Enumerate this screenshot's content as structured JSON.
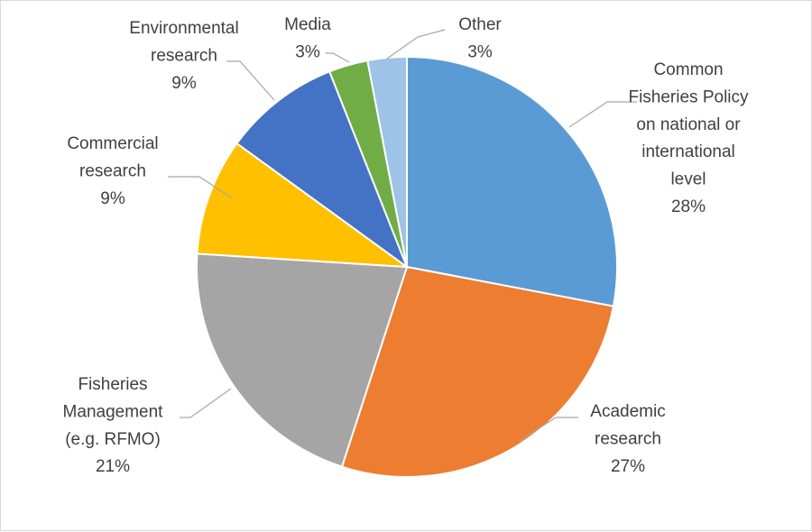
{
  "chart_data": {
    "type": "pie",
    "title": "",
    "start_angle_deg": 0,
    "direction": "clockwise",
    "slices": [
      {
        "label_lines": [
          "Common",
          "Fisheries Policy",
          "on national or",
          "international",
          "level"
        ],
        "pct_label": "28%",
        "value": 28,
        "color": "#5b9bd5"
      },
      {
        "label_lines": [
          "Academic",
          "research"
        ],
        "pct_label": "27%",
        "value": 27,
        "color": "#ed7d31"
      },
      {
        "label_lines": [
          "Fisheries",
          "Management",
          "(e.g. RFMO)"
        ],
        "pct_label": "21%",
        "value": 21,
        "color": "#a5a5a5"
      },
      {
        "label_lines": [
          "Commercial",
          "research"
        ],
        "pct_label": "9%",
        "value": 9,
        "color": "#ffc000"
      },
      {
        "label_lines": [
          "Environmental",
          "research"
        ],
        "pct_label": "9%",
        "value": 9,
        "color": "#4472c4"
      },
      {
        "label_lines": [
          "Media"
        ],
        "pct_label": "3%",
        "value": 3,
        "color": "#70ad47"
      },
      {
        "label_lines": [
          "Other"
        ],
        "pct_label": "3%",
        "value": 3,
        "color": "#9dc3e6"
      }
    ]
  }
}
